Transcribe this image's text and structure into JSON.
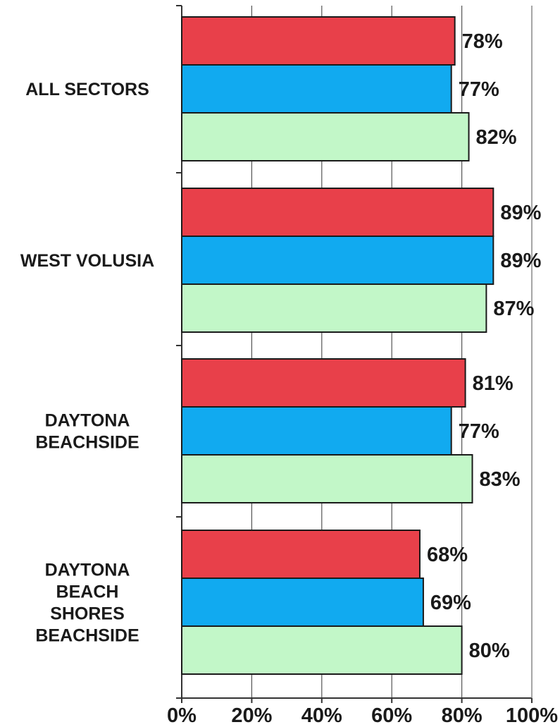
{
  "chart_data": {
    "type": "bar",
    "orientation": "horizontal",
    "categories": [
      [
        "ALL SECTORS"
      ],
      [
        "WEST VOLUSIA"
      ],
      [
        "DAYTONA",
        "BEACHSIDE"
      ],
      [
        "DAYTONA",
        "BEACH",
        "SHORES",
        "BEACHSIDE"
      ]
    ],
    "series": [
      {
        "color": "#e8404a",
        "values": [
          78,
          89,
          81,
          68
        ],
        "labels": [
          "78%",
          "89%",
          "81%",
          "68%"
        ]
      },
      {
        "color": "#11aaf0",
        "values": [
          77,
          89,
          77,
          69
        ],
        "labels": [
          "77%",
          "89%",
          "77%",
          "69%"
        ]
      },
      {
        "color": "#c2f7c8",
        "values": [
          82,
          87,
          83,
          80
        ],
        "labels": [
          "82%",
          "87%",
          "83%",
          "80%"
        ]
      }
    ],
    "xlim": [
      0,
      100
    ],
    "x_ticks": [
      0,
      20,
      40,
      60,
      80,
      100
    ],
    "x_tick_labels": [
      "0%",
      "20%",
      "40%",
      "60%",
      "80%",
      "100%"
    ],
    "grid": true,
    "title": "",
    "xlabel": "",
    "ylabel": ""
  }
}
